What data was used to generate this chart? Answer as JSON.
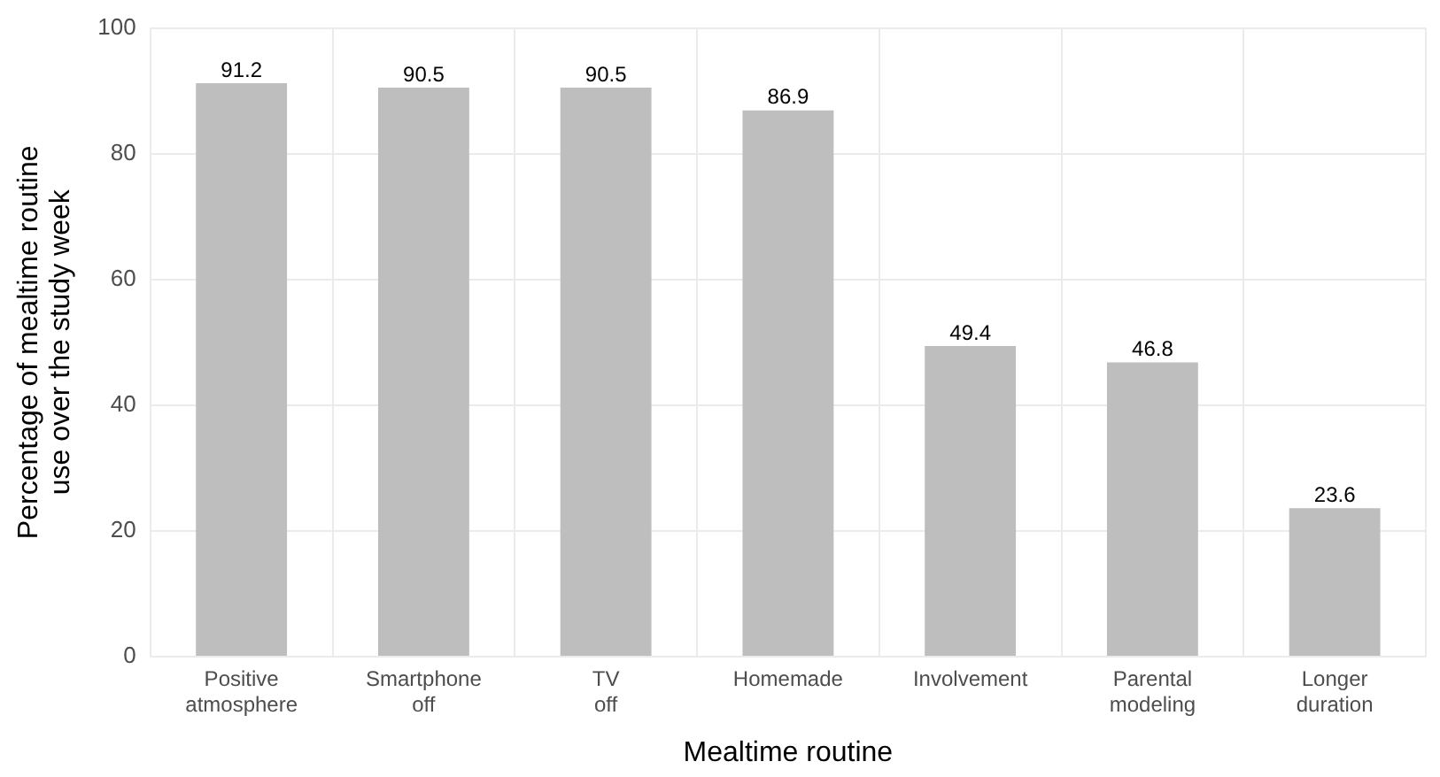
{
  "chart_data": {
    "type": "bar",
    "xlabel": "Mealtime routine",
    "ylabel": "Percentage of mealtime routine use over the study week",
    "categories": [
      "Positive atmosphere",
      "Smartphone off",
      "TV off",
      "Homemade",
      "Involvement",
      "Parental modeling",
      "Longer duration"
    ],
    "values": [
      91.2,
      90.5,
      90.5,
      86.9,
      49.4,
      46.8,
      23.6
    ],
    "color": "#bebebe",
    "ylim": [
      0,
      100
    ],
    "yticks": [
      0,
      20,
      40,
      60,
      80,
      100
    ],
    "grid": true,
    "data_labels": true
  }
}
